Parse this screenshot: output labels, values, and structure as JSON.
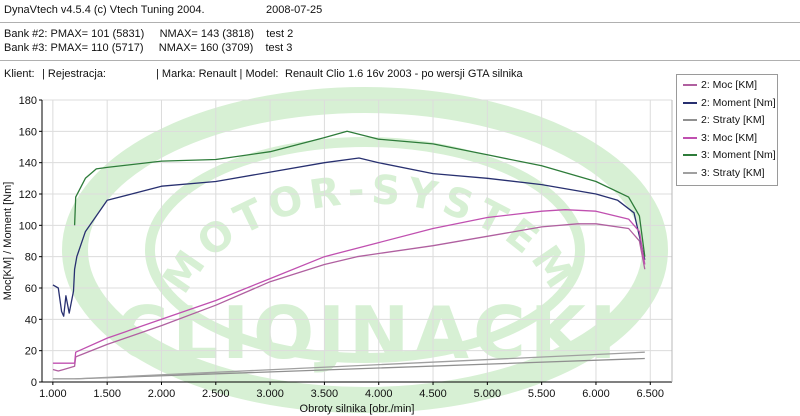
{
  "header": {
    "app_line": "DynaVtech v4.5.4 (c) Vtech Tuning 2004.",
    "date": "2008-07-25",
    "bank2": "Bank #2: PMAX= 101 (5831)     NMAX= 143 (3818)    test 2",
    "bank3": "Bank #3: PMAX= 110 (5717)     NMAX= 160 (3709)    test 3",
    "client_label": "Klient:",
    "registration_label": "| Rejestracja:",
    "make_label": "| Marka: Renault | Model:",
    "model_value": "Renault Clio 1.6 16v 2003 - po wersji GTA silnika"
  },
  "watermark": {
    "arc_text": "MOTOR-SYSTEM",
    "big_text": "CLIOJNACKI"
  },
  "chart_data": {
    "type": "line",
    "xlabel": "Obroty silnika [obr./min]",
    "ylabel": "Moc[KM] / Moment [Nm]",
    "xlim": [
      900,
      6700
    ],
    "ylim": [
      0,
      180
    ],
    "x_ticks": [
      "1.000",
      "1.500",
      "2.000",
      "2.500",
      "3.000",
      "3.500",
      "4.000",
      "4.500",
      "5.000",
      "5.500",
      "6.000",
      "6.500"
    ],
    "y_ticks": [
      "0",
      "20",
      "40",
      "60",
      "80",
      "100",
      "120",
      "140",
      "160",
      "180"
    ],
    "legend_position": "right",
    "series": [
      {
        "name": "2: Moc [KM]",
        "color": "#b060a0",
        "x": [
          1000,
          1050,
          1100,
          1150,
          1200,
          1210,
          1500,
          2000,
          2500,
          3000,
          3500,
          3800,
          4000,
          4500,
          5000,
          5500,
          5831,
          6000,
          6300,
          6400,
          6450
        ],
        "y": [
          8,
          7,
          8,
          9,
          10,
          16,
          24,
          36,
          49,
          64,
          75,
          80,
          82,
          87,
          93,
          99,
          101,
          101,
          98,
          90,
          72
        ]
      },
      {
        "name": "2: Moment [Nm]",
        "color": "#283070",
        "x": [
          1000,
          1050,
          1080,
          1100,
          1120,
          1150,
          1190,
          1200,
          1220,
          1300,
          1500,
          2000,
          2500,
          3000,
          3500,
          3818,
          4000,
          4500,
          5000,
          5500,
          6000,
          6200,
          6350,
          6450
        ],
        "y": [
          62,
          60,
          45,
          42,
          55,
          44,
          58,
          72,
          80,
          96,
          116,
          125,
          128,
          134,
          140,
          143,
          140,
          133,
          130,
          126,
          120,
          116,
          108,
          78
        ]
      },
      {
        "name": "2: Straty [KM]",
        "color": "#909090",
        "x": [
          1000,
          1200,
          6450
        ],
        "y": [
          2,
          2,
          15
        ]
      },
      {
        "name": "3: Moc [KM]",
        "color": "#c050b0",
        "x": [
          1000,
          1200,
          1210,
          1500,
          2000,
          2500,
          3000,
          3500,
          4000,
          4500,
          5000,
          5500,
          5717,
          6000,
          6300,
          6400,
          6450
        ],
        "y": [
          12,
          12,
          19,
          28,
          40,
          52,
          66,
          80,
          89,
          98,
          105,
          109,
          110,
          109,
          104,
          96,
          75
        ]
      },
      {
        "name": "3: Moment [Nm]",
        "color": "#2e7c3a",
        "x": [
          1200,
          1210,
          1300,
          1400,
          1500,
          2000,
          2500,
          3000,
          3500,
          3709,
          4000,
          4500,
          5000,
          5500,
          6000,
          6300,
          6400,
          6450
        ],
        "y": [
          100,
          118,
          130,
          136,
          137,
          141,
          142,
          147,
          156,
          160,
          155,
          152,
          145,
          138,
          128,
          118,
          106,
          80
        ]
      },
      {
        "name": "3: Straty [KM]",
        "color": "#a0a0a0",
        "x": [
          1000,
          1200,
          6450
        ],
        "y": [
          2,
          2,
          19
        ]
      }
    ]
  },
  "colors": {
    "watermark": "#d7f0d4",
    "grid": "#dcdcdc",
    "axis": "#000000"
  }
}
